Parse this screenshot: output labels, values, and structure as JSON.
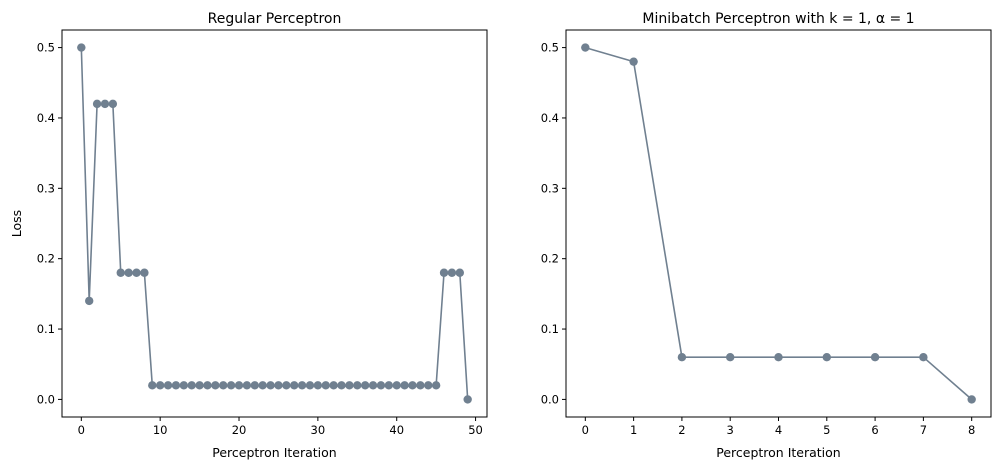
{
  "chart_data": [
    {
      "type": "line",
      "title": "Regular Perceptron",
      "xlabel": "Perceptron Iteration",
      "ylabel": "Loss",
      "xlim": [
        -2.45,
        51.45
      ],
      "ylim": [
        -0.025,
        0.525
      ],
      "xticks": [
        0,
        10,
        20,
        30,
        40,
        50
      ],
      "yticks": [
        0.0,
        0.1,
        0.2,
        0.3,
        0.4,
        0.5
      ],
      "grid": false,
      "series": [
        {
          "color": "#708090",
          "marker": "circle",
          "x": [
            0,
            1,
            2,
            3,
            4,
            5,
            6,
            7,
            8,
            9,
            10,
            11,
            12,
            13,
            14,
            15,
            16,
            17,
            18,
            19,
            20,
            21,
            22,
            23,
            24,
            25,
            26,
            27,
            28,
            29,
            30,
            31,
            32,
            33,
            34,
            35,
            36,
            37,
            38,
            39,
            40,
            41,
            42,
            43,
            44,
            45,
            46,
            47,
            48,
            49
          ],
          "y": [
            0.5,
            0.14,
            0.42,
            0.42,
            0.42,
            0.18,
            0.18,
            0.18,
            0.18,
            0.02,
            0.02,
            0.02,
            0.02,
            0.02,
            0.02,
            0.02,
            0.02,
            0.02,
            0.02,
            0.02,
            0.02,
            0.02,
            0.02,
            0.02,
            0.02,
            0.02,
            0.02,
            0.02,
            0.02,
            0.02,
            0.02,
            0.02,
            0.02,
            0.02,
            0.02,
            0.02,
            0.02,
            0.02,
            0.02,
            0.02,
            0.02,
            0.02,
            0.02,
            0.02,
            0.02,
            0.02,
            0.18,
            0.18,
            0.18,
            0.0
          ]
        }
      ]
    },
    {
      "type": "line",
      "title": "Minibatch Perceptron with k = 1, α = 1",
      "xlabel": "Perceptron Iteration",
      "ylabel": "",
      "xlim": [
        -0.4,
        8.4
      ],
      "ylim": [
        -0.025,
        0.525
      ],
      "xticks": [
        0,
        1,
        2,
        3,
        4,
        5,
        6,
        7,
        8
      ],
      "yticks": [
        0.0,
        0.1,
        0.2,
        0.3,
        0.4,
        0.5
      ],
      "grid": false,
      "series": [
        {
          "color": "#708090",
          "marker": "circle",
          "x": [
            0,
            1,
            2,
            3,
            4,
            5,
            6,
            7,
            8
          ],
          "y": [
            0.5,
            0.48,
            0.06,
            0.06,
            0.06,
            0.06,
            0.06,
            0.06,
            0.0
          ]
        }
      ]
    }
  ]
}
